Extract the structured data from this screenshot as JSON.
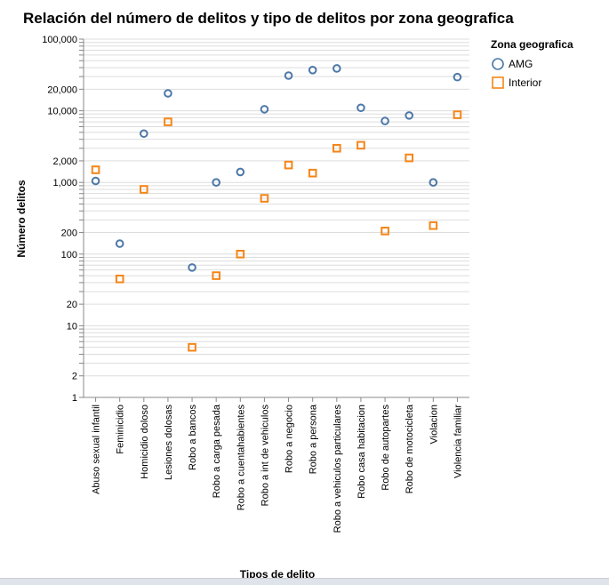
{
  "chart_data": {
    "type": "scatter",
    "title": "Relación del número de delitos y tipo de delitos por zona geografica",
    "xlabel": "Tipos de delito",
    "ylabel": "Número delitos",
    "yscale": "log",
    "ylim": [
      1,
      100000
    ],
    "y_ticks": [
      1,
      2,
      10,
      20,
      100,
      200,
      1000,
      2000,
      10000,
      20000,
      100000
    ],
    "y_tick_labels": [
      "1",
      "2",
      "10",
      "20",
      "100",
      "200",
      "1,000",
      "2,000",
      "10,000",
      "20,000",
      "100,000"
    ],
    "grid": true,
    "legend_position": "right",
    "legend_title": "Zona geografica",
    "categories": [
      "Abuso sexual infantil",
      "Feminicidio",
      "Homicidio doloso",
      "Lesiones dolosas",
      "Robo a bancos",
      "Robo a carga pesada",
      "Robo a cuentahabientes",
      "Robo a int de vehiculos",
      "Robo a negocio",
      "Robo a persona",
      "Robo a vehiculos particulares",
      "Robo casa habitacion",
      "Robo de autopartes",
      "Robo de motocicleta",
      "Violacion",
      "Violencia familiar"
    ],
    "series": [
      {
        "name": "AMG",
        "shape": "circle",
        "color": "#4c78a8",
        "values": [
          1050,
          140,
          4800,
          17500,
          65,
          1000,
          1400,
          10500,
          31000,
          37000,
          39000,
          11000,
          7200,
          8600,
          1000,
          29500
        ]
      },
      {
        "name": "Interior",
        "shape": "square",
        "color": "#f58518",
        "values": [
          1500,
          45,
          800,
          7000,
          5,
          50,
          100,
          600,
          1750,
          1350,
          3000,
          3300,
          210,
          2200,
          250,
          8800
        ]
      }
    ]
  }
}
